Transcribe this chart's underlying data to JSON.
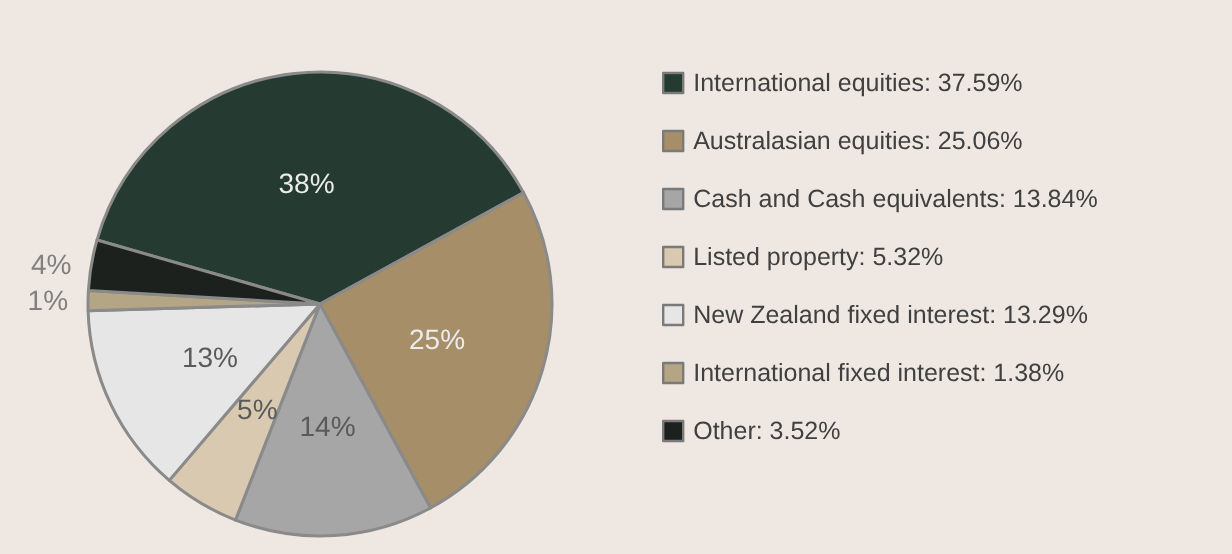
{
  "chart_data": {
    "type": "pie",
    "categories": [
      "International equities: 37.59%",
      "Australasian equities: 25.06%",
      "Cash and Cash equivalents: 13.84%",
      "Listed property: 5.32%",
      "New Zealand fixed interest: 13.29%",
      "International fixed interest: 1.38%",
      "Other: 3.52%"
    ],
    "values": [
      37.59,
      25.06,
      13.84,
      5.32,
      13.29,
      1.38,
      3.52
    ],
    "colors": [
      "#253a30",
      "#a58e68",
      "#a6a6a6",
      "#d9c9b0",
      "#e6e6e6",
      "#b4a584",
      "#1c211d"
    ],
    "value_labels": [
      "38%",
      "25%",
      "14%",
      "5%",
      "13%",
      "1%",
      "4%"
    ],
    "legend": "right"
  }
}
